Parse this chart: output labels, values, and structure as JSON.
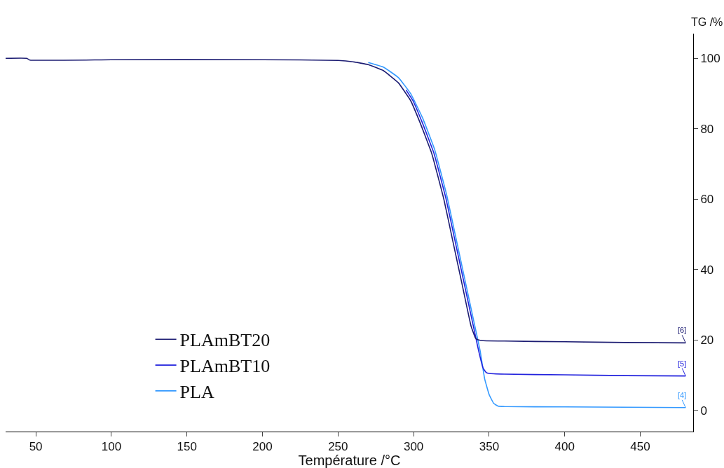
{
  "chart_data": {
    "type": "line",
    "xlabel": "Température /°C",
    "ylabel": "TG /%",
    "xlim": [
      30,
      485
    ],
    "ylim": [
      -6,
      107
    ],
    "xticks": [
      50,
      100,
      150,
      200,
      250,
      300,
      350,
      400,
      450
    ],
    "yticks": [
      0,
      20,
      40,
      60,
      80,
      100
    ],
    "grid": false,
    "legend": "bottom left",
    "line_style": "solid",
    "marker": "none",
    "series": [
      {
        "name": "PLAmBT20",
        "color": "#1c1c72",
        "x": [
          30,
          44,
          46,
          100,
          200,
          250,
          260,
          270,
          280,
          290,
          298,
          304,
          312,
          320,
          326,
          332,
          338,
          341,
          343,
          346,
          360,
          400,
          440,
          480
        ],
        "values": [
          100,
          100,
          99.5,
          99.6,
          99.6,
          99.4,
          99,
          98.2,
          96.5,
          93,
          88,
          82,
          73,
          60,
          48,
          36,
          24,
          20.5,
          20,
          19.8,
          19.7,
          19.5,
          19.3,
          19.2
        ]
      },
      {
        "name": "PLAmBT10",
        "color": "#2222dd",
        "x": [
          295,
          299.5,
          305.5,
          313.5,
          321.5,
          327.5,
          333.5,
          339.5,
          343,
          346,
          348,
          350,
          360,
          400,
          440,
          480
        ],
        "values": [
          91,
          88,
          82,
          73,
          60,
          48,
          36,
          24,
          17,
          12,
          10.8,
          10.5,
          10.3,
          10.1,
          9.9,
          9.8
        ]
      },
      {
        "name": "PLA",
        "color": "#3399ff",
        "x": [
          270,
          280,
          290,
          298,
          306,
          314,
          322,
          328,
          334,
          340,
          344,
          347,
          350,
          353,
          356,
          360,
          400,
          440,
          480
        ],
        "values": [
          98.8,
          97.5,
          94.5,
          90,
          83,
          74,
          61,
          49,
          37,
          25,
          17,
          9,
          4.5,
          2,
          1.2,
          1.1,
          1,
          0.9,
          0.8
        ]
      }
    ],
    "annotations": [
      "[6]",
      "[5]",
      "[4]"
    ]
  }
}
